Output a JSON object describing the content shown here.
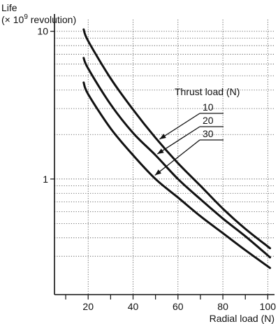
{
  "chart_data": {
    "type": "line",
    "ylabel_line1": "Life",
    "ylabel_line2_prefix": "(× 10",
    "ylabel_exponent": "9",
    "ylabel_line2_suffix": " revolution)",
    "xlabel": "Radial load (N)",
    "x_scale": "linear",
    "y_scale": "log",
    "xlim": [
      5,
      103
    ],
    "ylim": [
      0.165,
      12
    ],
    "x_ticks": [
      20,
      40,
      60,
      80,
      100
    ],
    "x_minor_ticks": [
      10,
      30,
      50,
      70,
      90
    ],
    "y_tick_labels": [
      {
        "value": 1,
        "label": "1"
      },
      {
        "value": 10,
        "label": "10"
      }
    ],
    "y_grid": [
      0.3,
      0.4,
      0.5,
      0.6,
      0.7,
      0.8,
      0.9,
      1,
      2,
      3,
      4,
      5,
      6,
      7,
      8,
      9,
      10
    ],
    "x_grid": [
      20,
      40,
      60,
      80,
      100
    ],
    "grid": true,
    "legend_title": "Thrust load (N)",
    "series": [
      {
        "name": "10",
        "x": [
          18,
          20,
          30,
          40,
          50,
          60,
          70,
          80,
          90,
          101
        ],
        "y": [
          10.3,
          8.6,
          4.8,
          2.95,
          1.9,
          1.28,
          0.9,
          0.63,
          0.46,
          0.34
        ]
      },
      {
        "name": "20",
        "x": [
          18,
          20,
          30,
          40,
          50,
          60,
          70,
          80,
          90,
          101
        ],
        "y": [
          6.6,
          5.6,
          3.2,
          2.05,
          1.45,
          1.0,
          0.73,
          0.54,
          0.41,
          0.295
        ]
      },
      {
        "name": "30",
        "x": [
          18,
          20,
          30,
          40,
          50,
          60,
          70,
          80,
          90,
          101
        ],
        "y": [
          4.5,
          3.75,
          2.2,
          1.45,
          1.0,
          0.75,
          0.56,
          0.43,
          0.33,
          0.25
        ]
      }
    ],
    "legend_targets": [
      {
        "series": "10",
        "x": 51
      },
      {
        "series": "20",
        "x": 50
      },
      {
        "series": "30",
        "x": 49
      }
    ]
  }
}
